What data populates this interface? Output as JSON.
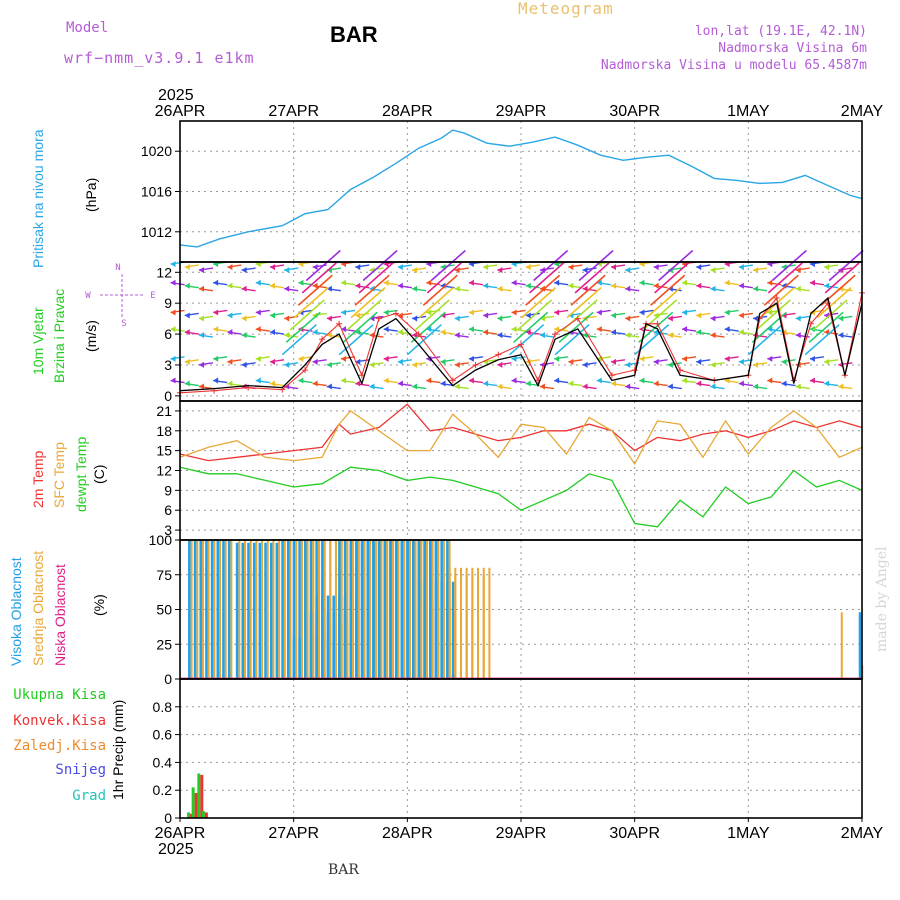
{
  "header": {
    "model_label": "Model",
    "model_name": "wrf−nmm_v3.9.1 e1km",
    "station": "BAR",
    "meteogram": "Meteogram",
    "lonlat": "lon,lat (19.1E, 42.1N)",
    "elevation": "Nadmorska Visina 6m",
    "model_elevation": "Nadmorska Visina u modelu 65.4587m",
    "watermark": "made by Angel",
    "footer_station": "BAR"
  },
  "colors": {
    "pressure": "#2aa6e6",
    "temp2m": "#ee3333",
    "sfc_temp": "#e8a838",
    "dewpt": "#22cc22",
    "high_cloud": "#1fa0ea",
    "mid_cloud": "#e8a838",
    "low_cloud": "#e0208a",
    "wind_label": "#22cc22",
    "purple": "#b45cd6"
  },
  "chart_data": [
    {
      "type": "line",
      "panel": "pressure",
      "ylabel_left": "Pritisak na nivou mora",
      "ylabel_unit": "(hPa)",
      "ylim": [
        1009,
        1023
      ],
      "yticks": [
        "1012",
        "1016",
        "1020"
      ],
      "xticks": [
        "26APR",
        "27APR",
        "28APR",
        "29APR",
        "30APR",
        "1MAY",
        "2MAY"
      ],
      "top_year": "2025",
      "x_days": [
        0,
        0.15,
        0.35,
        0.6,
        0.9,
        1.1,
        1.3,
        1.5,
        1.7,
        1.9,
        2.1,
        2.3,
        2.4,
        2.5,
        2.7,
        2.9,
        3.1,
        3.3,
        3.5,
        3.7,
        3.9,
        4.1,
        4.3,
        4.5,
        4.7,
        4.9,
        5.1,
        5.3,
        5.5,
        5.7,
        5.9,
        6.0
      ],
      "values": [
        1010.7,
        1010.5,
        1011.3,
        1012.0,
        1012.6,
        1013.8,
        1014.2,
        1016.2,
        1017.4,
        1018.8,
        1020.3,
        1021.3,
        1022.1,
        1021.8,
        1020.8,
        1020.5,
        1020.9,
        1021.4,
        1020.6,
        1019.6,
        1019.1,
        1019.4,
        1019.6,
        1018.5,
        1017.3,
        1017.1,
        1016.8,
        1016.9,
        1017.6,
        1016.6,
        1015.6,
        1015.3
      ]
    },
    {
      "type": "line",
      "panel": "wind",
      "ylabel_left": [
        "10m Vjetar",
        "Brzina i Pravac"
      ],
      "ylabel_unit": "(m/s)",
      "compass": [
        "N",
        "W",
        "E",
        "S"
      ],
      "ylim": [
        -0.5,
        13
      ],
      "yticks": [
        "0",
        "3",
        "6",
        "9",
        "12"
      ],
      "arrow_rows": [
        1,
        3.5,
        6,
        8,
        10.5,
        12.7
      ],
      "x_days": [
        0,
        0.3,
        0.6,
        0.9,
        1.1,
        1.25,
        1.4,
        1.6,
        1.75,
        1.9,
        2.1,
        2.4,
        2.6,
        2.8,
        3.0,
        3.15,
        3.3,
        3.5,
        3.8,
        4.0,
        4.1,
        4.2,
        4.4,
        4.7,
        5.0,
        5.1,
        5.25,
        5.4,
        5.55,
        5.7,
        5.85,
        6.0
      ],
      "speed_black": [
        0.5,
        0.7,
        1.0,
        0.8,
        3.0,
        5.0,
        6.0,
        1.2,
        6.5,
        7.5,
        5.0,
        1.0,
        2.5,
        3.5,
        4.0,
        1.0,
        5.5,
        6.5,
        1.5,
        2.0,
        7.0,
        6.5,
        2.0,
        1.5,
        2.0,
        8.0,
        9.0,
        1.2,
        8.0,
        9.5,
        2.0,
        9.0
      ],
      "gust_red": [
        0.3,
        0.5,
        0.8,
        0.6,
        2.5,
        5.5,
        7.0,
        2.0,
        7.5,
        8.0,
        6.0,
        1.5,
        3.0,
        4.0,
        5.0,
        1.5,
        6.0,
        7.5,
        2.0,
        2.5,
        7.0,
        7.0,
        2.5,
        1.5,
        2.0,
        7.5,
        9.5,
        1.5,
        7.0,
        9.0,
        2.0,
        10.0
      ]
    },
    {
      "type": "line",
      "panel": "temperature",
      "series_labels": [
        "2m Temp",
        "SFC Temp",
        "dewpt Temp"
      ],
      "ylabel_unit": "(C)",
      "ylim": [
        1.5,
        22.5
      ],
      "yticks": [
        "3",
        "6",
        "9",
        "12",
        "15",
        "18",
        "21"
      ],
      "x_days": [
        0,
        0.25,
        0.5,
        0.75,
        1.0,
        1.25,
        1.4,
        1.5,
        1.75,
        2.0,
        2.2,
        2.4,
        2.6,
        2.8,
        3.0,
        3.2,
        3.4,
        3.6,
        3.8,
        4.0,
        4.2,
        4.4,
        4.6,
        4.8,
        5.0,
        5.2,
        5.4,
        5.6,
        5.8,
        6.0
      ],
      "series": [
        {
          "name": "2m Temp",
          "values": [
            14.5,
            13.5,
            14.0,
            14.5,
            15.0,
            15.5,
            19.0,
            17.5,
            18.5,
            22.0,
            18.0,
            18.5,
            17.5,
            16.5,
            17.0,
            18.0,
            18.0,
            19.0,
            18.0,
            15.0,
            17.0,
            16.5,
            17.5,
            18.0,
            17.0,
            18.0,
            19.5,
            18.5,
            19.5,
            18.5
          ]
        },
        {
          "name": "SFC Temp",
          "values": [
            14.0,
            15.5,
            16.5,
            14.0,
            13.5,
            14.0,
            19.0,
            21.0,
            18.0,
            15.0,
            15.0,
            20.5,
            17.5,
            14.0,
            19.0,
            18.5,
            14.5,
            20.0,
            18.0,
            13.0,
            19.5,
            19.0,
            14.0,
            19.5,
            14.5,
            18.5,
            21.0,
            18.5,
            14.0,
            15.5
          ]
        },
        {
          "name": "dewpt Temp",
          "values": [
            12.5,
            11.5,
            11.5,
            10.5,
            9.5,
            10.0,
            11.5,
            12.5,
            12.0,
            10.5,
            11.0,
            10.5,
            9.5,
            8.5,
            6.0,
            7.5,
            9.0,
            11.5,
            10.5,
            4.0,
            3.5,
            7.5,
            5.0,
            9.5,
            7.0,
            8.0,
            12.0,
            9.5,
            10.5,
            9.0
          ]
        }
      ]
    },
    {
      "type": "bar",
      "panel": "clouds",
      "series_labels": [
        "Visoka Oblacnost",
        "Srednja Oblacnost",
        "Niska  Oblacnost"
      ],
      "ylabel_unit": "(%)",
      "ylim": [
        0,
        100
      ],
      "yticks": [
        "0",
        "25",
        "50",
        "75",
        "100"
      ],
      "x_start_days": [
        0.08,
        0.5,
        0.9,
        1.0,
        1.1,
        1.2,
        1.4,
        1.5,
        1.6,
        1.75,
        1.9,
        2.0,
        2.05,
        2.2,
        2.3,
        2.35,
        2.4,
        5.8,
        5.98
      ],
      "high_values": [
        100,
        98,
        100,
        30,
        48,
        60,
        100,
        100,
        100,
        100,
        100,
        100,
        70,
        0,
        0,
        0,
        3,
        0,
        48
      ],
      "mid_values": [
        100,
        100,
        100,
        100,
        40,
        100,
        100,
        100,
        100,
        100,
        100,
        100,
        55,
        50,
        75,
        80,
        0,
        48,
        10
      ]
    },
    {
      "type": "bar",
      "panel": "precip",
      "series_labels": [
        "Ukupna  Kisa",
        "Konvek.Kisa",
        "Zaledj.Kisa",
        "Snijeg",
        "Grad"
      ],
      "ylabel_unit": "1hr Precip (mm)",
      "ylim": [
        0,
        1
      ],
      "yticks": [
        "0",
        "0.2",
        "0.4",
        "0.6",
        "0.8"
      ],
      "x_days": [
        0.08,
        0.12,
        0.17,
        0.21
      ],
      "total": [
        0.04,
        0.22,
        0.32,
        0.05
      ],
      "convective": [
        0.03,
        0.18,
        0.31,
        0.04
      ],
      "bottom_year": "2025"
    }
  ]
}
